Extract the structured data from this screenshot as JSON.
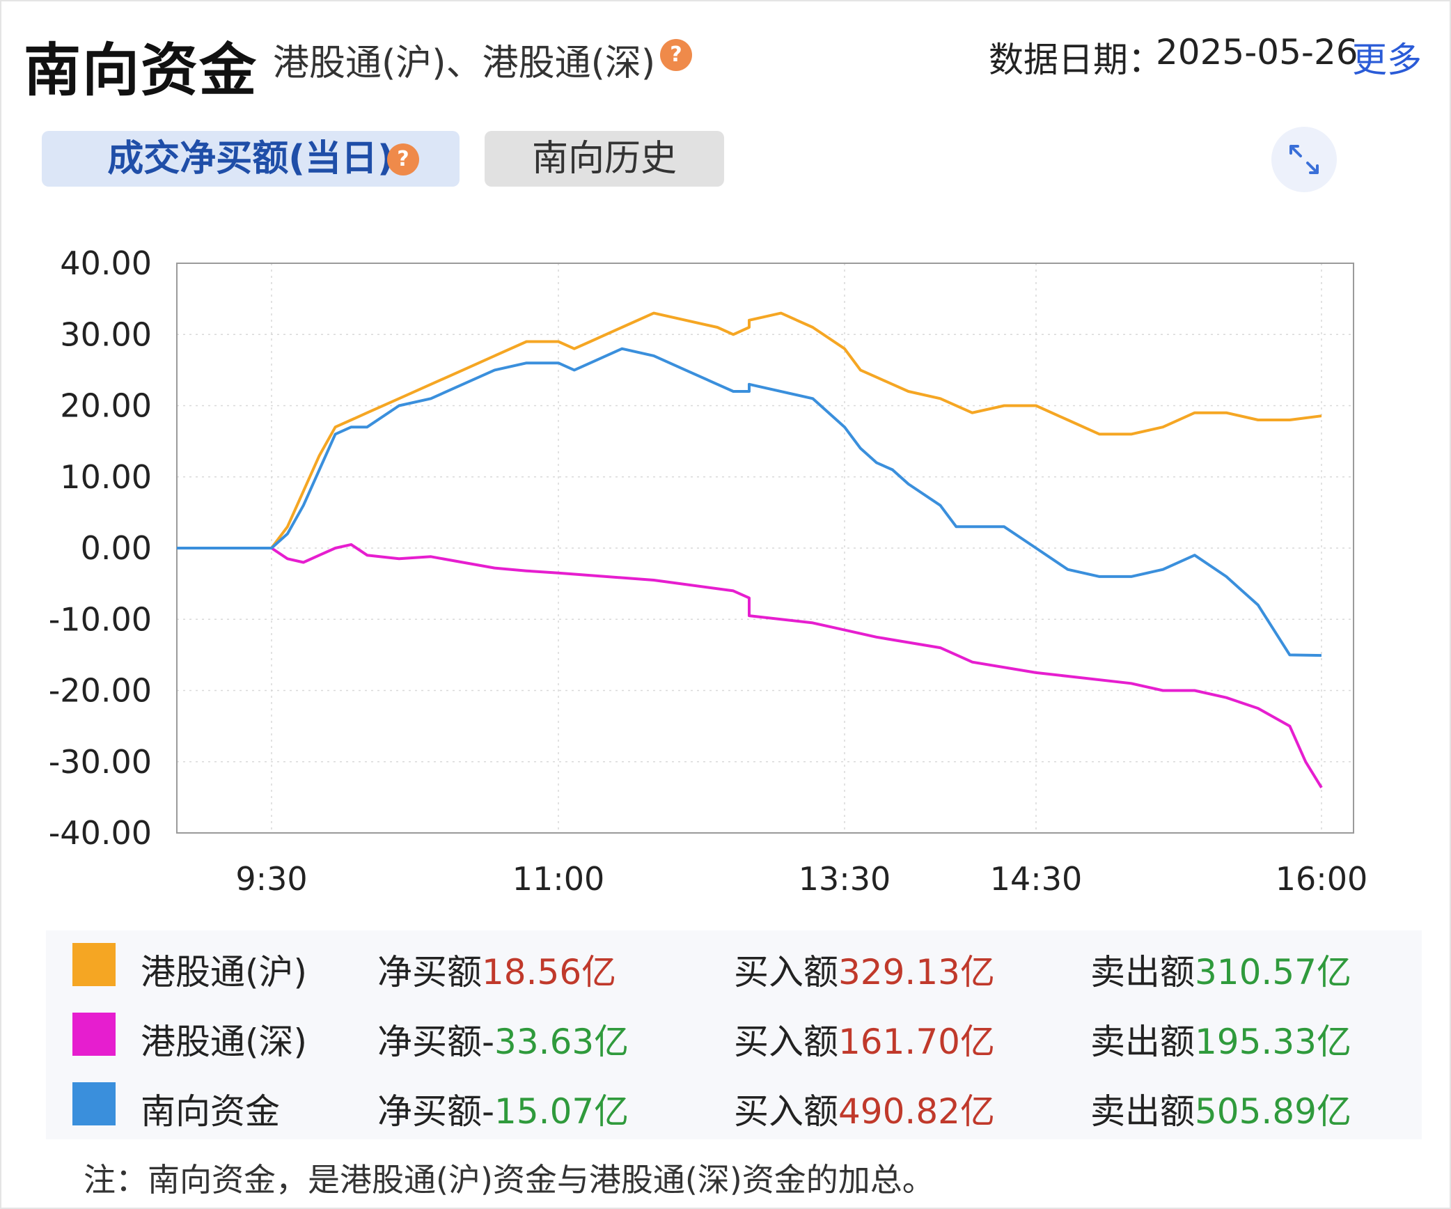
{
  "header": {
    "title": "南向资金",
    "subtitle": "港股通(沪)、港股通(深)",
    "help_glyph": "?",
    "date_label": "数据日期：",
    "date_value": "2025-05-26",
    "more_link": "更多"
  },
  "tabs": {
    "active": "成交净买额(当日)",
    "history": "南向历史"
  },
  "chart_data": {
    "type": "line",
    "title": "",
    "xlabel": "",
    "ylabel": "",
    "ylim": [
      -40,
      40
    ],
    "y_ticks": [
      "40.00",
      "30.00",
      "20.00",
      "10.00",
      "0.00",
      "-10.00",
      "-20.00",
      "-30.00",
      "-40.00"
    ],
    "x_ticks": [
      "9:30",
      "11:00",
      "13:30",
      "14:30",
      "16:00"
    ],
    "grid": true,
    "series": [
      {
        "name": "港股通(沪)",
        "color": "#f5a623",
        "x": [
          "9:00",
          "9:20",
          "9:30",
          "9:35",
          "9:40",
          "9:45",
          "9:50",
          "9:55",
          "10:00",
          "10:10",
          "10:20",
          "10:30",
          "10:40",
          "10:50",
          "11:00",
          "11:05",
          "11:10",
          "11:20",
          "11:30",
          "11:40",
          "11:50",
          "11:55",
          "12:00",
          "13:00",
          "13:10",
          "13:20",
          "13:30",
          "13:35",
          "13:40",
          "13:45",
          "13:50",
          "14:00",
          "14:10",
          "14:20",
          "14:30",
          "14:40",
          "14:50",
          "15:00",
          "15:10",
          "15:20",
          "15:30",
          "15:40",
          "15:50",
          "16:00"
        ],
        "y": [
          0,
          0,
          0,
          3,
          8,
          13,
          17,
          18,
          19,
          21,
          23,
          25,
          27,
          29,
          29,
          28,
          29,
          31,
          33,
          32,
          31,
          30,
          31,
          32,
          33,
          31,
          28,
          25,
          24,
          23,
          22,
          21,
          19,
          20,
          20,
          18,
          16,
          16,
          17,
          19,
          19,
          18,
          18,
          18.56
        ]
      },
      {
        "name": "港股通(深)",
        "color": "#e61ecf",
        "x": [
          "9:00",
          "9:20",
          "9:30",
          "9:35",
          "9:40",
          "9:45",
          "9:50",
          "9:55",
          "10:00",
          "10:10",
          "10:20",
          "10:30",
          "10:40",
          "10:50",
          "11:00",
          "11:30",
          "11:55",
          "12:00",
          "13:00",
          "13:20",
          "13:30",
          "13:40",
          "14:00",
          "14:10",
          "14:30",
          "14:40",
          "15:00",
          "15:10",
          "15:20",
          "15:30",
          "15:40",
          "15:50",
          "15:55",
          "16:00"
        ],
        "y": [
          0,
          0,
          0,
          -1.5,
          -2,
          -1,
          0,
          0.5,
          -1,
          -1.5,
          -1.2,
          -2,
          -2.8,
          -3.2,
          -3.5,
          -4.5,
          -6,
          -7,
          -9.5,
          -10.5,
          -11.5,
          -12.5,
          -14,
          -16,
          -17.5,
          -18,
          -19,
          -20,
          -20,
          -21,
          -22.5,
          -25,
          -30,
          -33.63
        ]
      },
      {
        "name": "南向资金",
        "color": "#3a8fdc",
        "x": [
          "9:00",
          "9:20",
          "9:30",
          "9:35",
          "9:40",
          "9:45",
          "9:50",
          "9:55",
          "10:00",
          "10:10",
          "10:20",
          "10:30",
          "10:40",
          "10:50",
          "11:00",
          "11:05",
          "11:10",
          "11:20",
          "11:30",
          "11:40",
          "11:50",
          "11:55",
          "12:00",
          "13:00",
          "13:20",
          "13:30",
          "13:35",
          "13:40",
          "13:45",
          "13:50",
          "14:00",
          "14:05",
          "14:10",
          "14:20",
          "14:30",
          "14:40",
          "14:50",
          "15:00",
          "15:10",
          "15:20",
          "15:30",
          "15:40",
          "15:50",
          "16:00"
        ],
        "y": [
          0,
          0,
          0,
          2,
          6,
          11,
          16,
          17,
          17,
          20,
          21,
          23,
          25,
          26,
          26,
          25,
          26,
          28,
          27,
          25,
          23,
          22,
          22,
          23,
          21,
          17,
          14,
          12,
          11,
          9,
          6,
          3,
          3,
          3,
          0,
          -3,
          -4,
          -4,
          -3,
          -1,
          -4,
          -8,
          -15,
          -15.07
        ]
      }
    ]
  },
  "legend": [
    {
      "name": "港股通(沪)",
      "color": "#f5a623",
      "net_label": "净买额",
      "net_value": "18.56亿",
      "net_sign": "",
      "net_color": "red",
      "buy_label": "买入额",
      "buy_value": "329.13亿",
      "sell_label": "卖出额",
      "sell_value": "310.57亿"
    },
    {
      "name": "港股通(深)",
      "color": "#e61ecf",
      "net_label": "净买额",
      "net_value": "33.63亿",
      "net_sign": "-",
      "net_color": "green",
      "buy_label": "买入额",
      "buy_value": "161.70亿",
      "sell_label": "卖出额",
      "sell_value": "195.33亿"
    },
    {
      "name": "南向资金",
      "color": "#3a8fdc",
      "net_label": "净买额",
      "net_value": "15.07亿",
      "net_sign": "-",
      "net_color": "green",
      "buy_label": "买入额",
      "buy_value": "490.82亿",
      "sell_label": "卖出额",
      "sell_value": "505.89亿"
    }
  ],
  "note": "注：南向资金，是港股通(沪)资金与港股通(深)资金的加总。",
  "icons": {
    "help": "question-circle-icon",
    "expand": "expand-arrows-icon"
  }
}
